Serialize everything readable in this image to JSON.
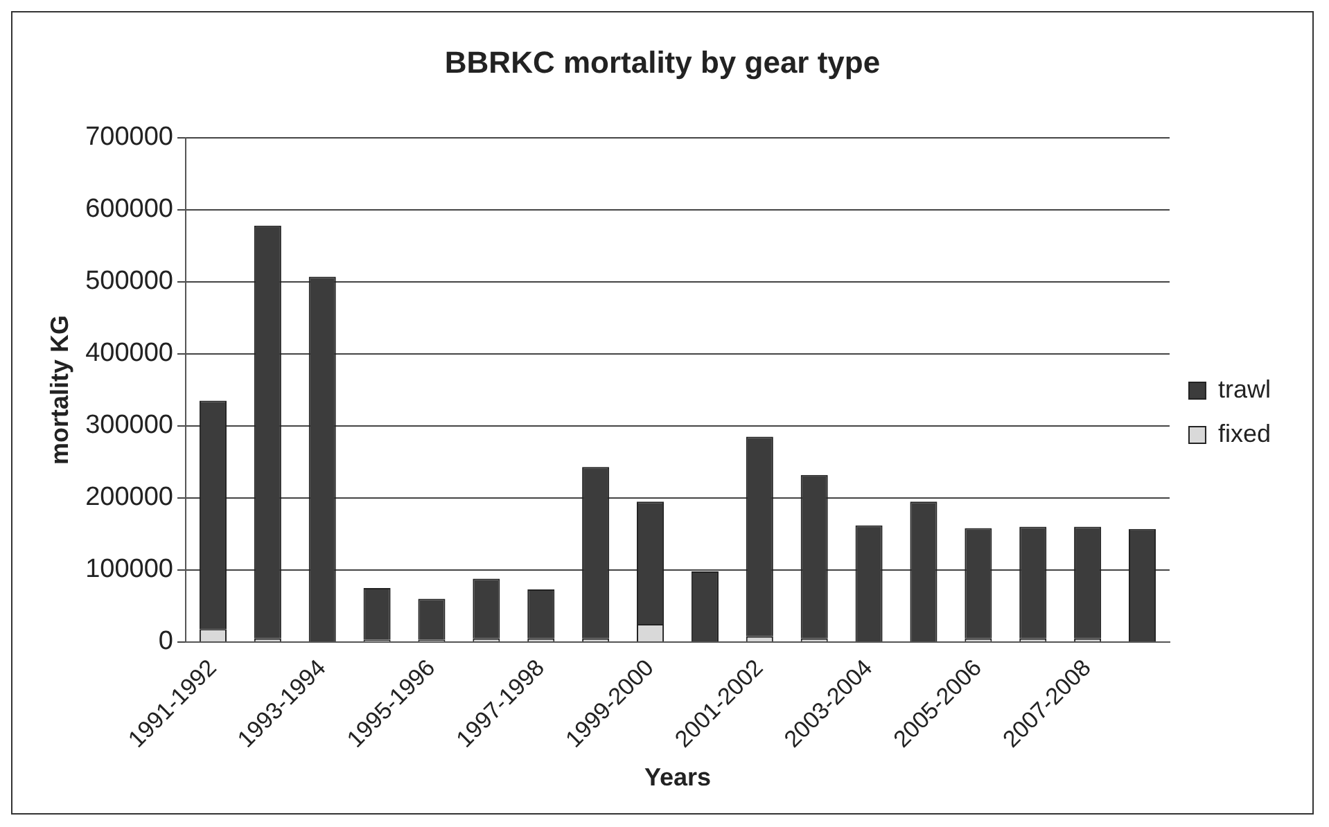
{
  "chart_data": {
    "type": "bar",
    "title": "BBRKC mortality by gear type",
    "xlabel": "Years",
    "ylabel": "mortality KG",
    "categories": [
      "1991-1992",
      null,
      "1993-1994",
      null,
      "1995-1996",
      null,
      "1997-1998",
      null,
      "1999-2000",
      null,
      "2001-2002",
      null,
      "2003-2004",
      null,
      "2005-2006",
      null,
      "2007-2008",
      null
    ],
    "stacked": true,
    "series": [
      {
        "name": "fixed",
        "color": "#d9d9d9",
        "values": [
          18000,
          5000,
          0,
          3000,
          3000,
          5000,
          5000,
          5000,
          25000,
          0,
          8000,
          5000,
          0,
          0,
          5000,
          5000,
          5000,
          0
        ]
      },
      {
        "name": "trawl",
        "color": "#3c3c3c",
        "values": [
          317000,
          573000,
          507000,
          72000,
          57000,
          83000,
          68000,
          238000,
          170000,
          98000,
          277000,
          227000,
          162000,
          195000,
          153000,
          155000,
          155000,
          157000
        ]
      }
    ],
    "ylim": [
      0,
      700000
    ],
    "yticks": [
      0,
      100000,
      200000,
      300000,
      400000,
      500000,
      600000,
      700000
    ],
    "grid": "y",
    "legend": "right"
  }
}
